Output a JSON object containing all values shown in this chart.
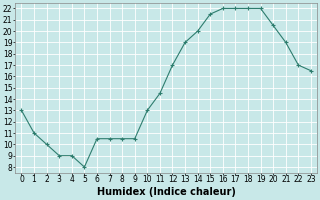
{
  "x": [
    0,
    1,
    2,
    3,
    4,
    5,
    6,
    7,
    8,
    9,
    10,
    11,
    12,
    13,
    14,
    15,
    16,
    17,
    18,
    19,
    20,
    21,
    22,
    23
  ],
  "y": [
    13,
    11,
    10,
    9,
    9,
    8,
    10.5,
    10.5,
    10.5,
    10.5,
    13,
    14.5,
    17,
    19,
    20,
    21.5,
    22,
    22,
    22,
    22,
    20.5,
    19,
    17,
    16.5
  ],
  "line_color": "#2e7d6e",
  "marker": "+",
  "marker_color": "#2e7d6e",
  "bg_color": "#c8e8e8",
  "grid_color": "#ffffff",
  "xlabel": "Humidex (Indice chaleur)",
  "xlim": [
    -0.5,
    23.5
  ],
  "ylim": [
    7.5,
    22.5
  ],
  "yticks": [
    8,
    9,
    10,
    11,
    12,
    13,
    14,
    15,
    16,
    17,
    18,
    19,
    20,
    21,
    22
  ],
  "xticks": [
    0,
    1,
    2,
    3,
    4,
    5,
    6,
    7,
    8,
    9,
    10,
    11,
    12,
    13,
    14,
    15,
    16,
    17,
    18,
    19,
    20,
    21,
    22,
    23
  ],
  "tick_fontsize": 5.5,
  "label_fontsize": 7
}
